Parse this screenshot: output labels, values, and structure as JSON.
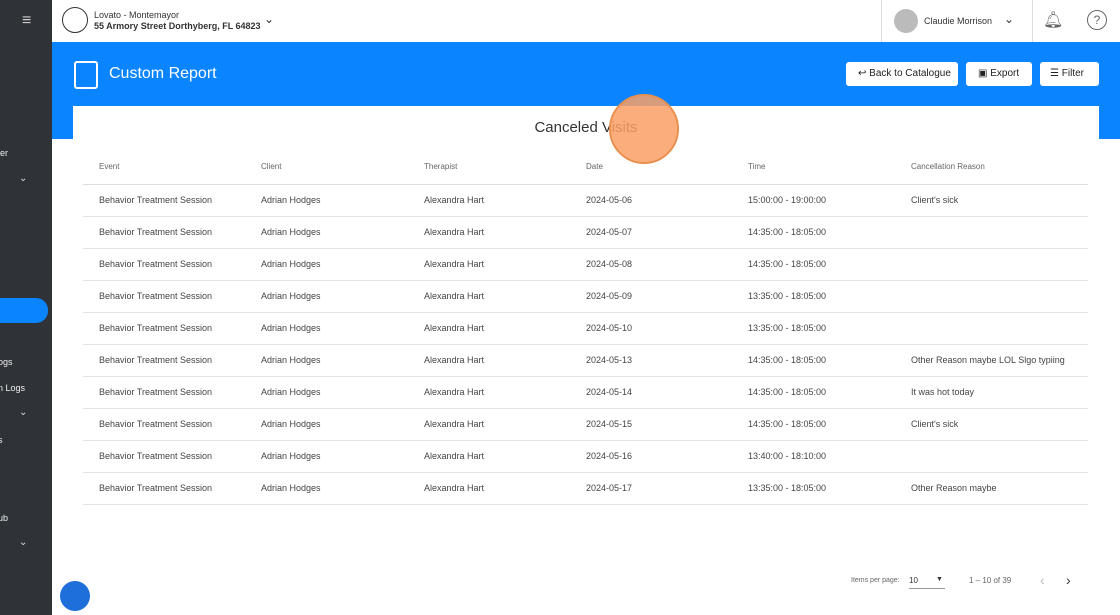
{
  "header": {
    "org": "Lovato - Montemayor",
    "address": "55 Armory Street Dorthyberg, FL 64823",
    "user": "Claudie Morrison"
  },
  "sidebar": {
    "items": [
      "er",
      "ogs",
      "n Logs",
      "s",
      "ub"
    ]
  },
  "page": {
    "title": "Custom Report",
    "buttons": [
      "Back to Catalogue",
      "Export",
      "Filter"
    ]
  },
  "table": {
    "title": "Canceled Visits",
    "columns": [
      "Event",
      "Client",
      "Therapist",
      "Date",
      "Time",
      "Cancellation Reason"
    ],
    "rows": [
      [
        "Behavior Treatment Session",
        "Adrian Hodges",
        "Alexandra Hart",
        "2024-05-06",
        "15:00:00 - 19:00:00",
        "Client's sick"
      ],
      [
        "Behavior Treatment Session",
        "Adrian Hodges",
        "Alexandra Hart",
        "2024-05-07",
        "14:35:00 - 18:05:00",
        null
      ],
      [
        "Behavior Treatment Session",
        "Adrian Hodges",
        "Alexandra Hart",
        "2024-05-08",
        "14:35:00 - 18:05:00",
        null
      ],
      [
        "Behavior Treatment Session",
        "Adrian Hodges",
        "Alexandra Hart",
        "2024-05-09",
        "13:35:00 - 18:05:00",
        null
      ],
      [
        "Behavior Treatment Session",
        "Adrian Hodges",
        "Alexandra Hart",
        "2024-05-10",
        "13:35:00 - 18:05:00",
        null
      ],
      [
        "Behavior Treatment Session",
        "Adrian Hodges",
        "Alexandra Hart",
        "2024-05-13",
        "14:35:00 - 18:05:00",
        "Other Reason maybe LOL Slgo typiing"
      ],
      [
        "Behavior Treatment Session",
        "Adrian Hodges",
        "Alexandra Hart",
        "2024-05-14",
        "14:35:00 - 18:05:00",
        "It was hot today"
      ],
      [
        "Behavior Treatment Session",
        "Adrian Hodges",
        "Alexandra Hart",
        "2024-05-15",
        "14:35:00 - 18:05:00",
        "Client's sick"
      ],
      [
        "Behavior Treatment Session",
        "Adrian Hodges",
        "Alexandra Hart",
        "2024-05-16",
        "13:40:00 - 18:10:00",
        null
      ],
      [
        "Behavior Treatment Session",
        "Adrian Hodges",
        "Alexandra Hart",
        "2024-05-17",
        "13:35:00 - 18:05:00",
        "Other Reason maybe"
      ]
    ]
  },
  "pagination": {
    "label": "Items per page:",
    "page_size": "10",
    "range": "1 – 10 of 39"
  }
}
